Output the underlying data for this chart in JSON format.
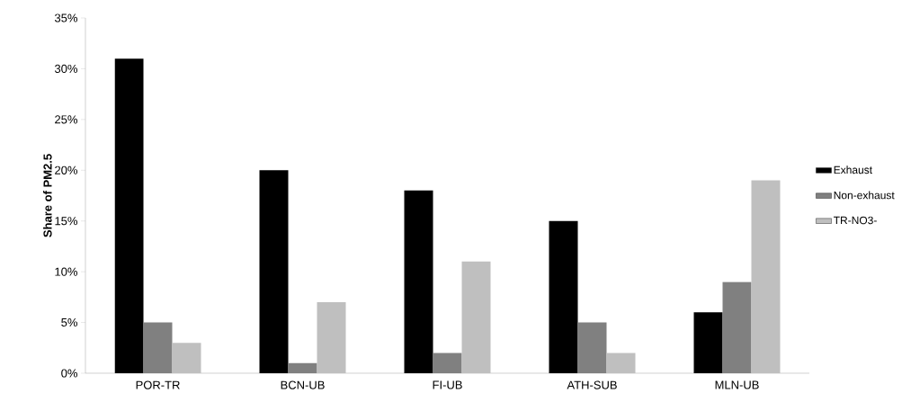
{
  "chart_data": {
    "type": "bar",
    "ylabel": "Share of PM2.5",
    "categories": [
      "POR-TR",
      "BCN-UB",
      "FI-UB",
      "ATH-SUB",
      "MLN-UB"
    ],
    "series": [
      {
        "name": "Exhaust",
        "color": "#000000",
        "values": [
          31,
          20,
          18,
          15,
          6
        ]
      },
      {
        "name": "Non-exhaust",
        "color": "#808080",
        "values": [
          5,
          1,
          2,
          5,
          9
        ]
      },
      {
        "name": "TR-NO3-",
        "color": "#bfbfbf",
        "values": [
          3,
          7,
          11,
          2,
          19
        ]
      }
    ],
    "ylim": [
      0,
      35
    ],
    "yticks": [
      {
        "value": 0,
        "label": "0%"
      },
      {
        "value": 5,
        "label": "5%"
      },
      {
        "value": 10,
        "label": "10%"
      },
      {
        "value": 15,
        "label": "15%"
      },
      {
        "value": 20,
        "label": "20%"
      },
      {
        "value": 25,
        "label": "25%"
      },
      {
        "value": 30,
        "label": "30%"
      },
      {
        "value": 35,
        "label": "35%"
      }
    ],
    "grid": false,
    "legend": "right"
  }
}
